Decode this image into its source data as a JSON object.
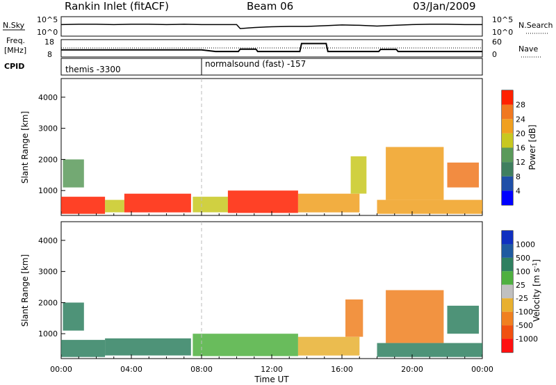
{
  "header": {
    "station": "Rankin Inlet (fitACF)",
    "beam": "Beam 06",
    "date": "03/Jan/2009"
  },
  "nsky_panel": {
    "left_label": "N.Sky",
    "right_label": "N.Search",
    "left_ticks": [
      "10^5",
      "10^0"
    ],
    "right_ticks": [
      "10^5",
      "10^0"
    ]
  },
  "freq_panel": {
    "left_label_line1": "Freq.",
    "left_label_line2": "[MHz]",
    "right_label": "Nave",
    "left_ticks": [
      "18",
      "8"
    ],
    "right_ticks": [
      "60",
      "0"
    ]
  },
  "cpid_panel": {
    "label": "CPID",
    "segments": [
      {
        "name": "themis -3300",
        "start_hour": 0,
        "end_hour": 8
      },
      {
        "name": "normalsound (fast) -157",
        "start_hour": 8,
        "end_hour": 24
      }
    ]
  },
  "colors": {
    "power_scale": [
      "#0000ff",
      "#1f4fa8",
      "#3f7f5f",
      "#5a9a5a",
      "#c8c820",
      "#f0a020",
      "#f07820",
      "#ff2000"
    ],
    "velocity_scale": [
      "#1030c0",
      "#1f5aa0",
      "#2f8060",
      "#4fb040",
      "#c0c0c0",
      "#e8b030",
      "#f08020",
      "#f05010",
      "#ff1010"
    ]
  },
  "chart_data": [
    {
      "type": "line",
      "title": "N.Sky / N.Search",
      "x": [
        0,
        1,
        2,
        3,
        4,
        5,
        6,
        7,
        8,
        9,
        10,
        10.2,
        11,
        12,
        13,
        14,
        15,
        16,
        17,
        18,
        19,
        20,
        21,
        22,
        23,
        24
      ],
      "series": [
        {
          "values": [
            3.0,
            3.1,
            3.1,
            3.0,
            3.1,
            3.1,
            3.0,
            3.1,
            3.0,
            3.0,
            3.0,
            1.9,
            2.2,
            2.4,
            2.5,
            2.5,
            2.7,
            2.9,
            2.8,
            2.6,
            2.8,
            3.0,
            3.1,
            3.1,
            3.0,
            3.0
          ]
        }
      ],
      "xlim": [
        0,
        24
      ],
      "ylim": [
        0,
        5
      ],
      "scale": "log"
    },
    {
      "type": "line",
      "title": "Freq. / Nave",
      "x": [
        0,
        8,
        8.8,
        10.1,
        10.2,
        11.1,
        11.2,
        13.6,
        13.7,
        15.1,
        15.2,
        18.1,
        18.2,
        19.1,
        19.2,
        24
      ],
      "series": [
        {
          "name": "Freq. [MHz]",
          "values": [
            12,
            12,
            11,
            11,
            12.5,
            12.5,
            11,
            11,
            16,
            16,
            11,
            11,
            12.3,
            12.3,
            11,
            11
          ]
        }
      ],
      "xlim": [
        0,
        24
      ],
      "ylim": [
        8,
        18
      ]
    },
    {
      "type": "heatmap",
      "title": "Power",
      "xlabel": "",
      "ylabel": "Slant Range [km]",
      "x_ticks": [
        "00:00",
        "04:00",
        "08:00",
        "12:00",
        "16:00",
        "20:00",
        "00:00"
      ],
      "y_ticks": [
        1000,
        2000,
        3000,
        4000
      ],
      "xlim": [
        0,
        24
      ],
      "ylim": [
        200,
        4600
      ],
      "colorbar_label": "Power [dB]",
      "colorbar_ticks": [
        4,
        8,
        12,
        16,
        20,
        24,
        28
      ],
      "regions": [
        {
          "t0": 0,
          "t1": 2.5,
          "r0": 250,
          "r1": 800,
          "power": 28
        },
        {
          "t0": 0.1,
          "t1": 1.3,
          "r0": 1100,
          "r1": 2000,
          "power": 12
        },
        {
          "t0": 2.5,
          "t1": 3.6,
          "r0": 300,
          "r1": 700,
          "power": 18
        },
        {
          "t0": 3.6,
          "t1": 7.4,
          "r0": 300,
          "r1": 900,
          "power": 28
        },
        {
          "t0": 7.5,
          "t1": 9.5,
          "r0": 300,
          "r1": 800,
          "power": 16
        },
        {
          "t0": 9.5,
          "t1": 13.5,
          "r0": 280,
          "r1": 1000,
          "power": 28
        },
        {
          "t0": 13.5,
          "t1": 17,
          "r0": 300,
          "r1": 900,
          "power": 20
        },
        {
          "t0": 16.5,
          "t1": 17.4,
          "r0": 900,
          "r1": 2100,
          "power": 16
        },
        {
          "t0": 18.5,
          "t1": 21.8,
          "r0": 700,
          "r1": 2400,
          "power": 22
        },
        {
          "t0": 22,
          "t1": 23.8,
          "r0": 1100,
          "r1": 1900,
          "power": 26
        },
        {
          "t0": 18,
          "t1": 24,
          "r0": 250,
          "r1": 700,
          "power": 20
        }
      ]
    },
    {
      "type": "heatmap",
      "title": "Velocity",
      "xlabel": "Time UT",
      "ylabel": "Slant Range [km]",
      "x_ticks": [
        "00:00",
        "04:00",
        "08:00",
        "12:00",
        "16:00",
        "20:00",
        "00:00"
      ],
      "y_ticks": [
        1000,
        2000,
        3000,
        4000
      ],
      "xlim": [
        0,
        24
      ],
      "ylim": [
        200,
        4600
      ],
      "colorbar_label": "Velocity [m s-1]",
      "colorbar_ticks": [
        1000,
        500,
        100,
        25,
        -25,
        -100,
        -500,
        -1000
      ],
      "regions": [
        {
          "t0": 0,
          "t1": 2.5,
          "r0": 250,
          "r1": 800,
          "velocity": 100
        },
        {
          "t0": 0.1,
          "t1": 1.3,
          "r0": 1100,
          "r1": 2000,
          "velocity": 100
        },
        {
          "t0": 2.5,
          "t1": 7.4,
          "r0": 300,
          "r1": 850,
          "velocity": 100
        },
        {
          "t0": 7.5,
          "t1": 13.5,
          "r0": 280,
          "r1": 1000,
          "velocity": 50
        },
        {
          "t0": 13.5,
          "t1": 17,
          "r0": 300,
          "r1": 900,
          "velocity": -100
        },
        {
          "t0": 16.2,
          "t1": 17.2,
          "r0": 900,
          "r1": 2100,
          "velocity": -300
        },
        {
          "t0": 18.5,
          "t1": 21.8,
          "r0": 700,
          "r1": 2400,
          "velocity": -300
        },
        {
          "t0": 22,
          "t1": 23.8,
          "r0": 1000,
          "r1": 1900,
          "velocity": 100
        },
        {
          "t0": 18,
          "t1": 24,
          "r0": 250,
          "r1": 700,
          "velocity": 100
        }
      ]
    }
  ]
}
